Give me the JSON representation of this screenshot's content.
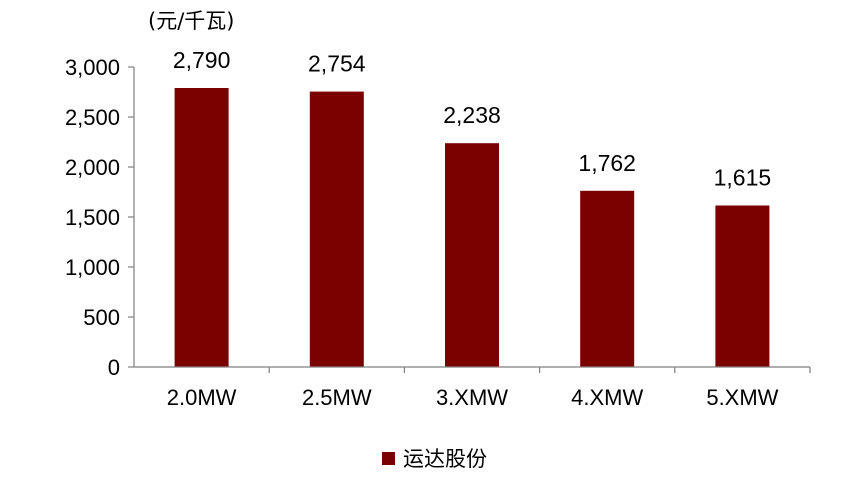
{
  "chart_data": {
    "type": "bar",
    "unit_label": "(元/千瓦)",
    "categories": [
      "2.0MW",
      "2.5MW",
      "3.XMW",
      "4.XMW",
      "5.XMW"
    ],
    "series": [
      {
        "name": "运达股份",
        "values": [
          2790,
          2754,
          2238,
          1762,
          1615
        ],
        "color": "#7b0000"
      }
    ],
    "data_labels": [
      "2,790",
      "2,754",
      "2,238",
      "1,762",
      "1,615"
    ],
    "yticks": [
      0,
      500,
      1000,
      1500,
      2000,
      2500,
      3000
    ],
    "ytick_labels": [
      "0",
      "500",
      "1,000",
      "1,500",
      "2,000",
      "2,500",
      "3,000"
    ],
    "ylim": [
      0,
      3000
    ],
    "grid": false,
    "legend_position": "bottom-center"
  }
}
